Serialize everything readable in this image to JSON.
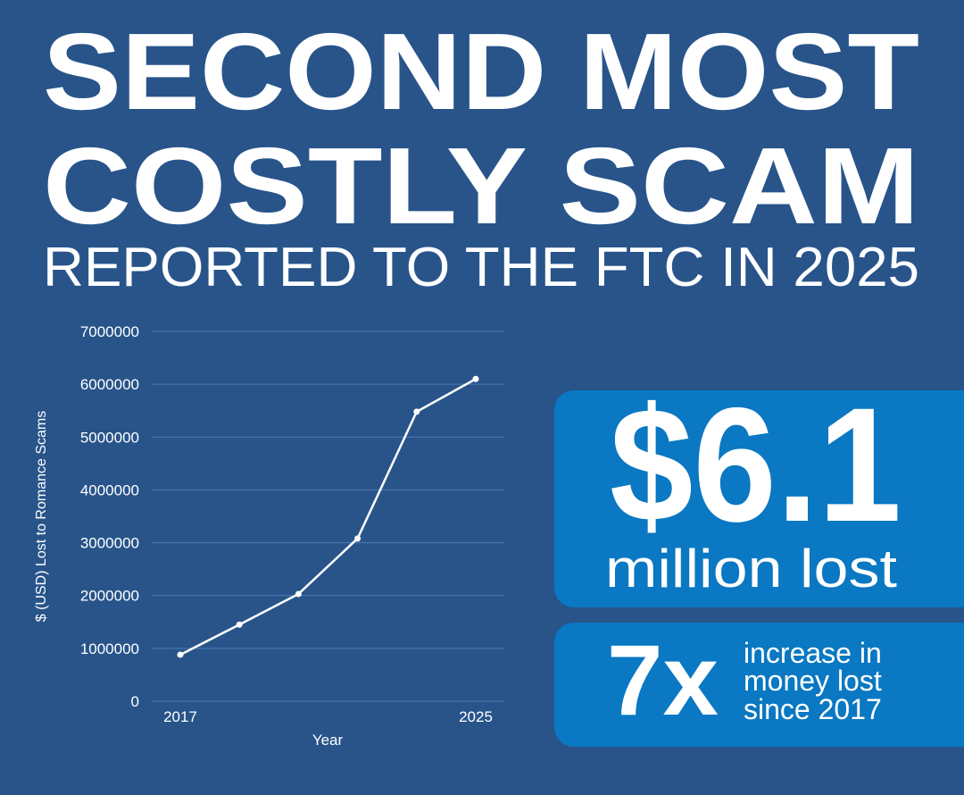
{
  "header": {
    "title_lines": [
      "SECOND MOST",
      "COSTLY SCAM"
    ],
    "subtitle": "REPORTED TO THE FTC IN 2025"
  },
  "chart_data": {
    "type": "line",
    "categories": [
      "2017",
      null,
      null,
      null,
      null,
      "2025"
    ],
    "series": [
      {
        "name": "$ (USD) Lost to Romance Scams",
        "color": "#ffffff",
        "values": [
          880000,
          1450000,
          2030000,
          3080000,
          5480000,
          6100000
        ]
      }
    ],
    "ylabel": "$ (USD) Lost to Romance Scams",
    "xlabel": "Year",
    "ylim": [
      0,
      7000000
    ],
    "yticks": [
      0,
      1000000,
      2000000,
      3000000,
      4000000,
      5000000,
      6000000,
      7000000
    ],
    "grid": true
  },
  "callouts": [
    {
      "value": "$6.1",
      "text_lines": [
        "million lost"
      ]
    },
    {
      "value": "7x",
      "text_lines": [
        "increase in",
        "money lost",
        "since 2017"
      ]
    }
  ]
}
